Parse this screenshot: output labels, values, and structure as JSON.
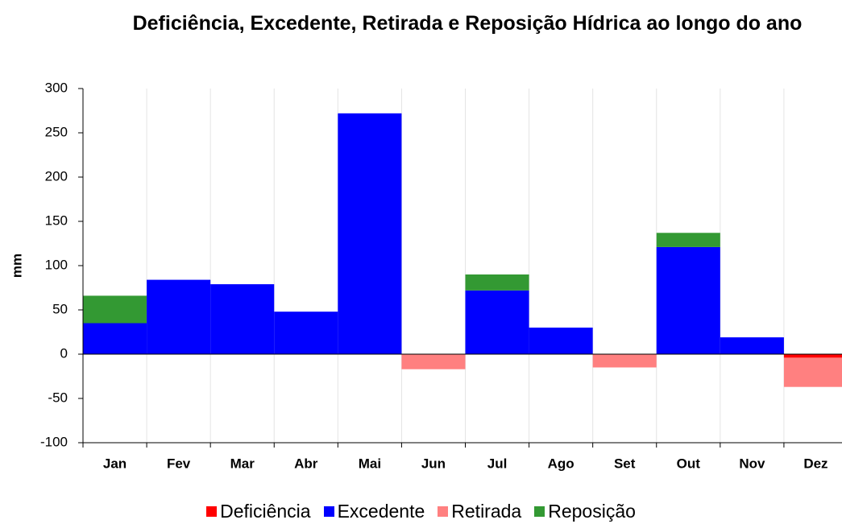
{
  "chart_data": {
    "type": "stacked_bar",
    "title": "Deficiência, Excedente, Retirada e Reposição Hídrica ao longo do ano",
    "y_label": "mm",
    "categories": [
      "Jan",
      "Fev",
      "Mar",
      "Abr",
      "Mai",
      "Jun",
      "Jul",
      "Ago",
      "Set",
      "Out",
      "Nov",
      "Dez"
    ],
    "series": [
      {
        "name": "Deficiência",
        "color": "#ff0000",
        "values": [
          0,
          0,
          0,
          0,
          0,
          0,
          0,
          0,
          0,
          0,
          0,
          -4
        ]
      },
      {
        "name": "Excedente",
        "color": "#0000ff",
        "values": [
          35,
          84,
          79,
          48,
          272,
          0,
          72,
          30,
          0,
          121,
          19,
          0
        ]
      },
      {
        "name": "Retirada",
        "color": "#ff8080",
        "values": [
          0,
          0,
          0,
          0,
          0,
          -17,
          0,
          0,
          -15,
          0,
          0,
          -33
        ]
      },
      {
        "name": "Reposição",
        "color": "#339933",
        "values": [
          31,
          0,
          0,
          0,
          0,
          0,
          18,
          0,
          0,
          16,
          0,
          0
        ]
      }
    ],
    "ylim": [
      -100,
      300
    ],
    "yticks": [
      -100,
      -50,
      0,
      50,
      100,
      150,
      200,
      250,
      300
    ],
    "grid": "vertical",
    "legend": "bottom"
  }
}
